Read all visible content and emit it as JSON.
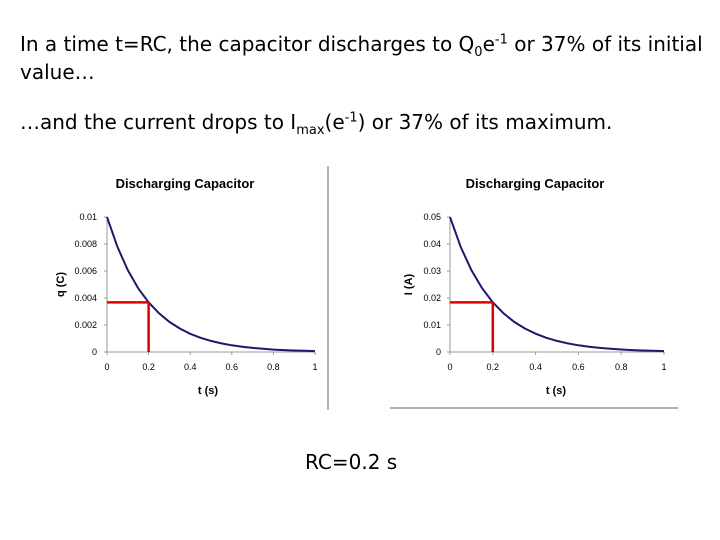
{
  "slide": {
    "line1": {
      "before": "In a time t=RC, the capacitor discharges to Q",
      "sub": "0",
      "mid": "e",
      "sup": "-1",
      "after": " or 37% of its initial value…"
    },
    "line2": {
      "before": "…and the current drops to I",
      "sub": "max",
      "mid": "(e",
      "sup": "-1",
      "after": ") or 37% of its maximum."
    },
    "footer": "RC=0.2 s"
  },
  "colors": {
    "curve": "#1a1a6e",
    "marker": "#e00000",
    "axis": "#999999"
  },
  "chart_data": [
    {
      "type": "line",
      "title": "Discharging Capacitor",
      "xlabel": "t (s)",
      "ylabel": "q (C)",
      "xlim": [
        0,
        1
      ],
      "ylim": [
        0,
        0.01
      ],
      "x_ticks": [
        "0",
        "0.2",
        "0.4",
        "0.6",
        "0.8",
        "1"
      ],
      "y_ticks": [
        "0",
        "0.002",
        "0.004",
        "0.006",
        "0.008",
        "0.01"
      ],
      "series": [
        {
          "x": [
            0,
            0.05,
            0.1,
            0.15,
            0.2,
            0.25,
            0.3,
            0.35,
            0.4,
            0.45,
            0.5,
            0.55,
            0.6,
            0.65,
            0.7,
            0.75,
            0.8,
            0.85,
            0.9,
            0.95,
            1.0
          ],
          "y": [
            0.01,
            0.00779,
            0.00607,
            0.00472,
            0.00368,
            0.00287,
            0.00223,
            0.00174,
            0.00135,
            0.00105,
            0.00082,
            0.00064,
            0.0005,
            0.00039,
            0.0003,
            0.00024,
            0.00018,
            0.00014,
            0.00011,
            9e-05,
            7e-05
          ]
        }
      ],
      "marker": {
        "x": 0.2,
        "y": 0.00368
      }
    },
    {
      "type": "line",
      "title": "Discharging Capacitor",
      "xlabel": "t (s)",
      "ylabel": "I (A)",
      "xlim": [
        0,
        1
      ],
      "ylim": [
        0,
        0.05
      ],
      "x_ticks": [
        "0",
        "0.2",
        "0.4",
        "0.6",
        "0.8",
        "1"
      ],
      "y_ticks": [
        "0",
        "0.01",
        "0.02",
        "0.03",
        "0.04",
        "0.05"
      ],
      "series": [
        {
          "x": [
            0,
            0.05,
            0.1,
            0.15,
            0.2,
            0.25,
            0.3,
            0.35,
            0.4,
            0.45,
            0.5,
            0.55,
            0.6,
            0.65,
            0.7,
            0.75,
            0.8,
            0.85,
            0.9,
            0.95,
            1.0
          ],
          "y": [
            0.05,
            0.03894,
            0.03033,
            0.02362,
            0.01839,
            0.01433,
            0.01116,
            0.00869,
            0.00677,
            0.00527,
            0.0041,
            0.0032,
            0.00249,
            0.00194,
            0.00151,
            0.00118,
            0.00092,
            0.00071,
            0.00056,
            0.00043,
            0.00034
          ]
        }
      ],
      "marker": {
        "x": 0.2,
        "y": 0.01839
      }
    }
  ]
}
